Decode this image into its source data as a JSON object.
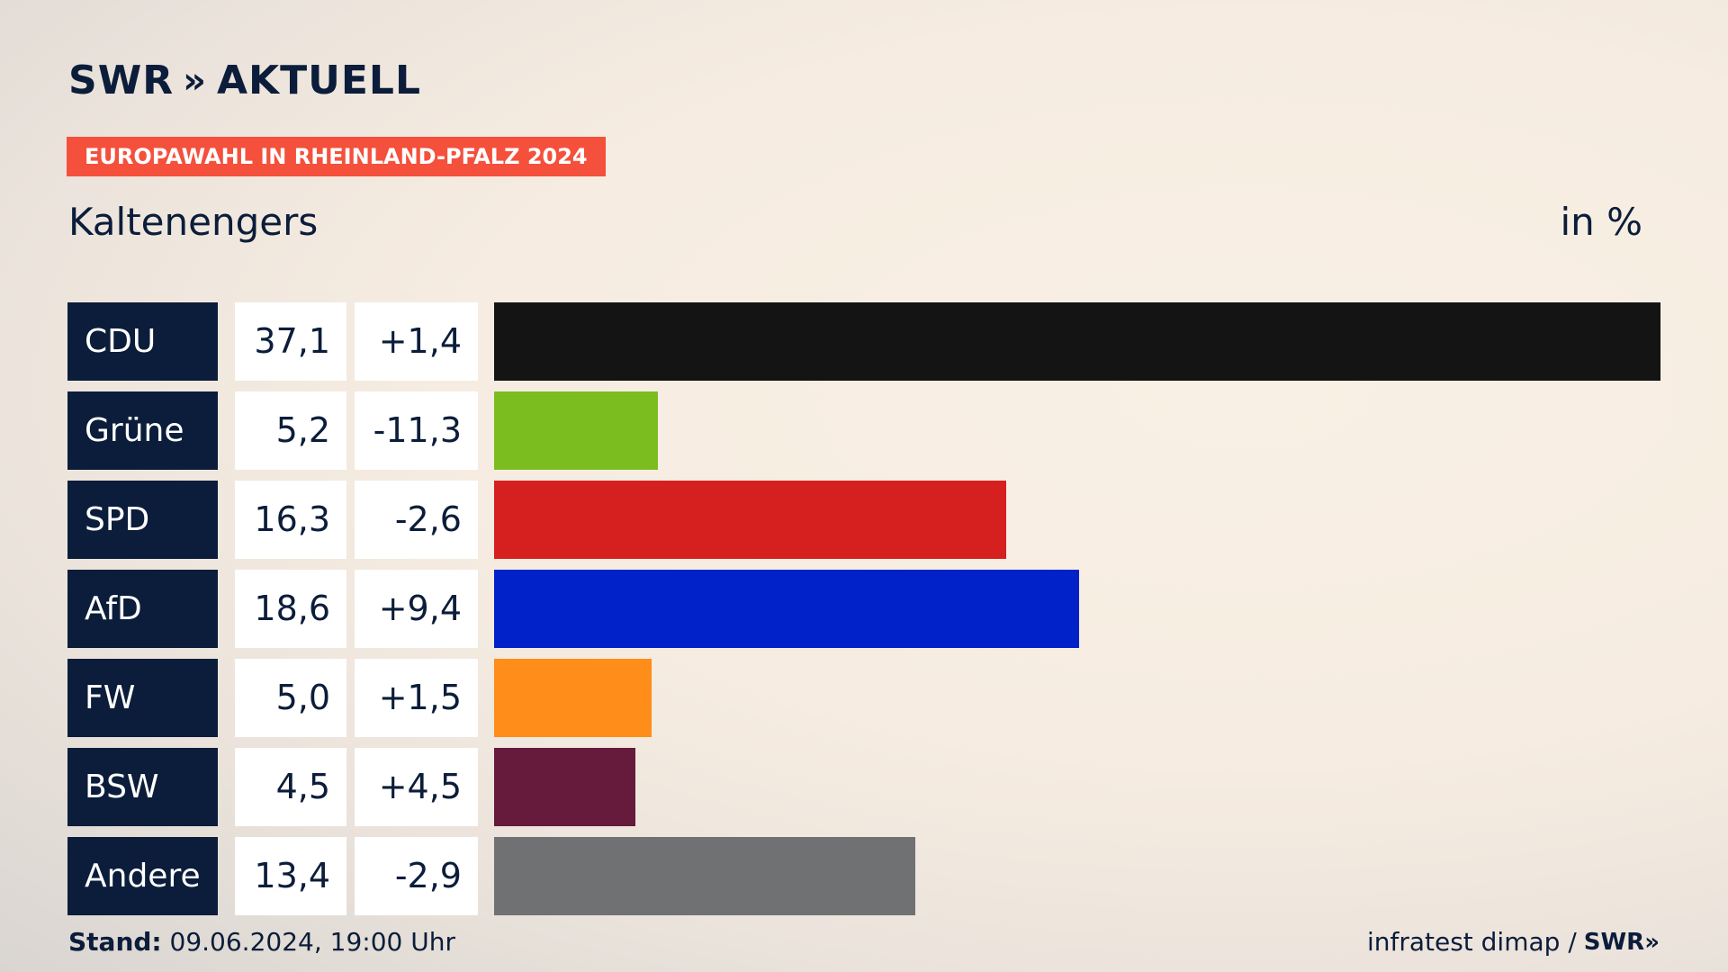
{
  "header": {
    "brand_name": "SWR",
    "brand_chevrons": "»",
    "brand_suffix": "AKTUELL",
    "tag": "EUROPAWAHL IN RHEINLAND-PFALZ 2024",
    "place": "Kaltenengers",
    "unit": "in %"
  },
  "chart_data": {
    "type": "bar",
    "orientation": "horizontal",
    "categories": [
      "CDU",
      "Grüne",
      "SPD",
      "AfD",
      "FW",
      "BSW",
      "Andere"
    ],
    "values": [
      37.1,
      5.2,
      16.3,
      18.6,
      5.0,
      4.5,
      13.4
    ],
    "value_labels": [
      "37,1",
      "5,2",
      "16,3",
      "18,6",
      "5,0",
      "4,5",
      "13,4"
    ],
    "change_labels": [
      "+1,4",
      "-11,3",
      "-2,6",
      "+9,4",
      "+1,5",
      "+4,5",
      "-2,9"
    ],
    "changes": [
      1.4,
      -11.3,
      -2.6,
      9.4,
      1.5,
      4.5,
      -2.9
    ],
    "colors": [
      "#141414",
      "#7bbd1e",
      "#d62020",
      "#0022c8",
      "#ff8d19",
      "#661a3c",
      "#707173"
    ],
    "xlim": [
      0,
      37.1
    ]
  },
  "footer": {
    "stand_label": "Stand:",
    "stand_value": " 09.06.2024, 19:00 Uhr",
    "source": "infratest dimap /",
    "source_brand": "SWR»"
  }
}
